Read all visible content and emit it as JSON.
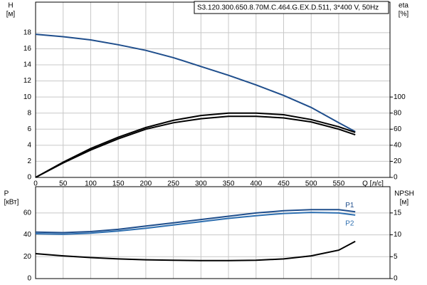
{
  "chart_data": [
    {
      "type": "line",
      "title": "S3.120.300.650.8.70M.C.464.G.EX.D.511, 3*400 V, 50Hz",
      "ylabel": "H",
      "yunit": "[м]",
      "y2label": "eta",
      "y2unit": "[%]",
      "xlabel": "Q [л/с]",
      "x": [
        0,
        50,
        100,
        150,
        200,
        250,
        300,
        350,
        400,
        450,
        500,
        550,
        580
      ],
      "xlim": [
        0,
        643
      ],
      "xticks": [
        0,
        50,
        100,
        150,
        200,
        250,
        300,
        350,
        400,
        450,
        500,
        550
      ],
      "ylim": [
        0,
        21.8
      ],
      "yticks": [
        0,
        2,
        4,
        6,
        8,
        10,
        12,
        14,
        16,
        18
      ],
      "y2lim": [
        0,
        218
      ],
      "y2ticks": [
        0,
        20,
        40,
        60,
        80,
        100
      ],
      "grid": true,
      "series": [
        {
          "color": "#1f4e8c",
          "values": [
            17.8,
            17.5,
            17.1,
            16.5,
            15.8,
            14.9,
            13.8,
            12.7,
            11.5,
            10.2,
            8.7,
            6.8,
            5.7
          ]
        },
        {
          "color": "#000000",
          "axis": "y2",
          "values": [
            0,
            19,
            36,
            50,
            62,
            71,
            77,
            80,
            80,
            78,
            72,
            63,
            56
          ]
        },
        {
          "color": "#000000",
          "axis": "y2",
          "values": [
            0,
            18,
            34,
            48,
            60,
            68,
            73,
            76,
            76,
            74,
            69,
            60,
            53
          ]
        }
      ]
    },
    {
      "type": "line",
      "ylabel": "P",
      "yunit": "[кВт]",
      "y2label": "NPSH",
      "y2unit": "[м]",
      "x": [
        0,
        50,
        100,
        150,
        200,
        250,
        300,
        350,
        400,
        450,
        500,
        550,
        580
      ],
      "xlim": [
        0,
        643
      ],
      "ylim": [
        0,
        84
      ],
      "yticks": [
        0,
        20,
        40,
        60
      ],
      "y2lim": [
        0,
        21
      ],
      "y2ticks": [
        0,
        5,
        10,
        15
      ],
      "grid": true,
      "series": [
        {
          "name": "P1",
          "color": "#1f4e8c",
          "values": [
            42.5,
            42,
            43,
            45,
            48,
            51,
            54,
            57,
            60,
            62,
            63,
            63,
            61
          ]
        },
        {
          "name": "P2",
          "color": "#2e6fb0",
          "values": [
            41,
            40.5,
            41.5,
            43.5,
            46,
            49,
            52,
            55,
            57.5,
            59.5,
            60.5,
            60,
            58
          ]
        },
        {
          "color": "#000000",
          "axis": "y2",
          "values": [
            5.7,
            5.2,
            4.8,
            4.5,
            4.3,
            4.2,
            4.1,
            4.1,
            4.2,
            4.5,
            5.2,
            6.5,
            8.5
          ]
        }
      ]
    }
  ]
}
